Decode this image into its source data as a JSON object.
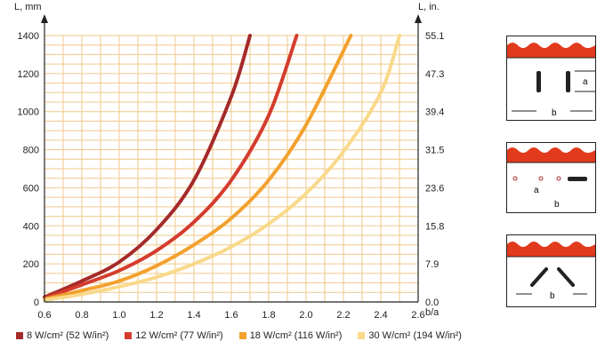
{
  "chart_data": {
    "type": "line",
    "title": "",
    "ylabel": "L, mm",
    "y2label": "L, in.",
    "xlabel": "b/a",
    "x_ticks": [
      "0.6",
      "0.8",
      "1.0",
      "1.2",
      "1.4",
      "1.6",
      "1.8",
      "2.0",
      "2.2",
      "2.4",
      "2.6"
    ],
    "y_ticks": [
      "0",
      "200",
      "400",
      "600",
      "800",
      "1000",
      "1200",
      "1400"
    ],
    "y2_ticks": [
      "0.0",
      "7.9",
      "15.8",
      "23.6",
      "31.5",
      "39.4",
      "47.3",
      "55.1"
    ],
    "xlim": [
      0.6,
      2.6
    ],
    "ylim": [
      0,
      1400
    ],
    "grid": true,
    "legend_position": "bottom",
    "series": [
      {
        "name": "8 W/cm² (52 W/in²)",
        "color": "#a52a2a",
        "x": [
          0.6,
          0.8,
          1.0,
          1.2,
          1.4,
          1.6,
          1.7
        ],
        "y": [
          25,
          110,
          210,
          380,
          640,
          1080,
          1400
        ]
      },
      {
        "name": "12 W/cm² (77 W/in²)",
        "color": "#d43c2e",
        "x": [
          0.6,
          0.8,
          1.0,
          1.2,
          1.4,
          1.6,
          1.8,
          1.95
        ],
        "y": [
          20,
          90,
          165,
          270,
          420,
          640,
          980,
          1400
        ]
      },
      {
        "name": "18 W/cm² (116 W/in²)",
        "color": "#f2a12e",
        "x": [
          0.6,
          0.8,
          1.0,
          1.2,
          1.4,
          1.6,
          1.8,
          2.0,
          2.24
        ],
        "y": [
          15,
          60,
          110,
          190,
          300,
          440,
          640,
          930,
          1400
        ]
      },
      {
        "name": "30 W/cm² (194 W/in²)",
        "color": "#f9d98a",
        "x": [
          0.6,
          0.8,
          1.0,
          1.2,
          1.4,
          1.6,
          1.8,
          2.0,
          2.2,
          2.4,
          2.5
        ],
        "y": [
          10,
          40,
          80,
          130,
          200,
          290,
          410,
          570,
          790,
          1100,
          1400
        ]
      }
    ]
  },
  "diagrams": {
    "label_a": "a",
    "label_b": "b"
  },
  "colors": {
    "grid": "#efc98a",
    "plot_bg": "#ffffff",
    "corrugation": "#e23a1c"
  }
}
